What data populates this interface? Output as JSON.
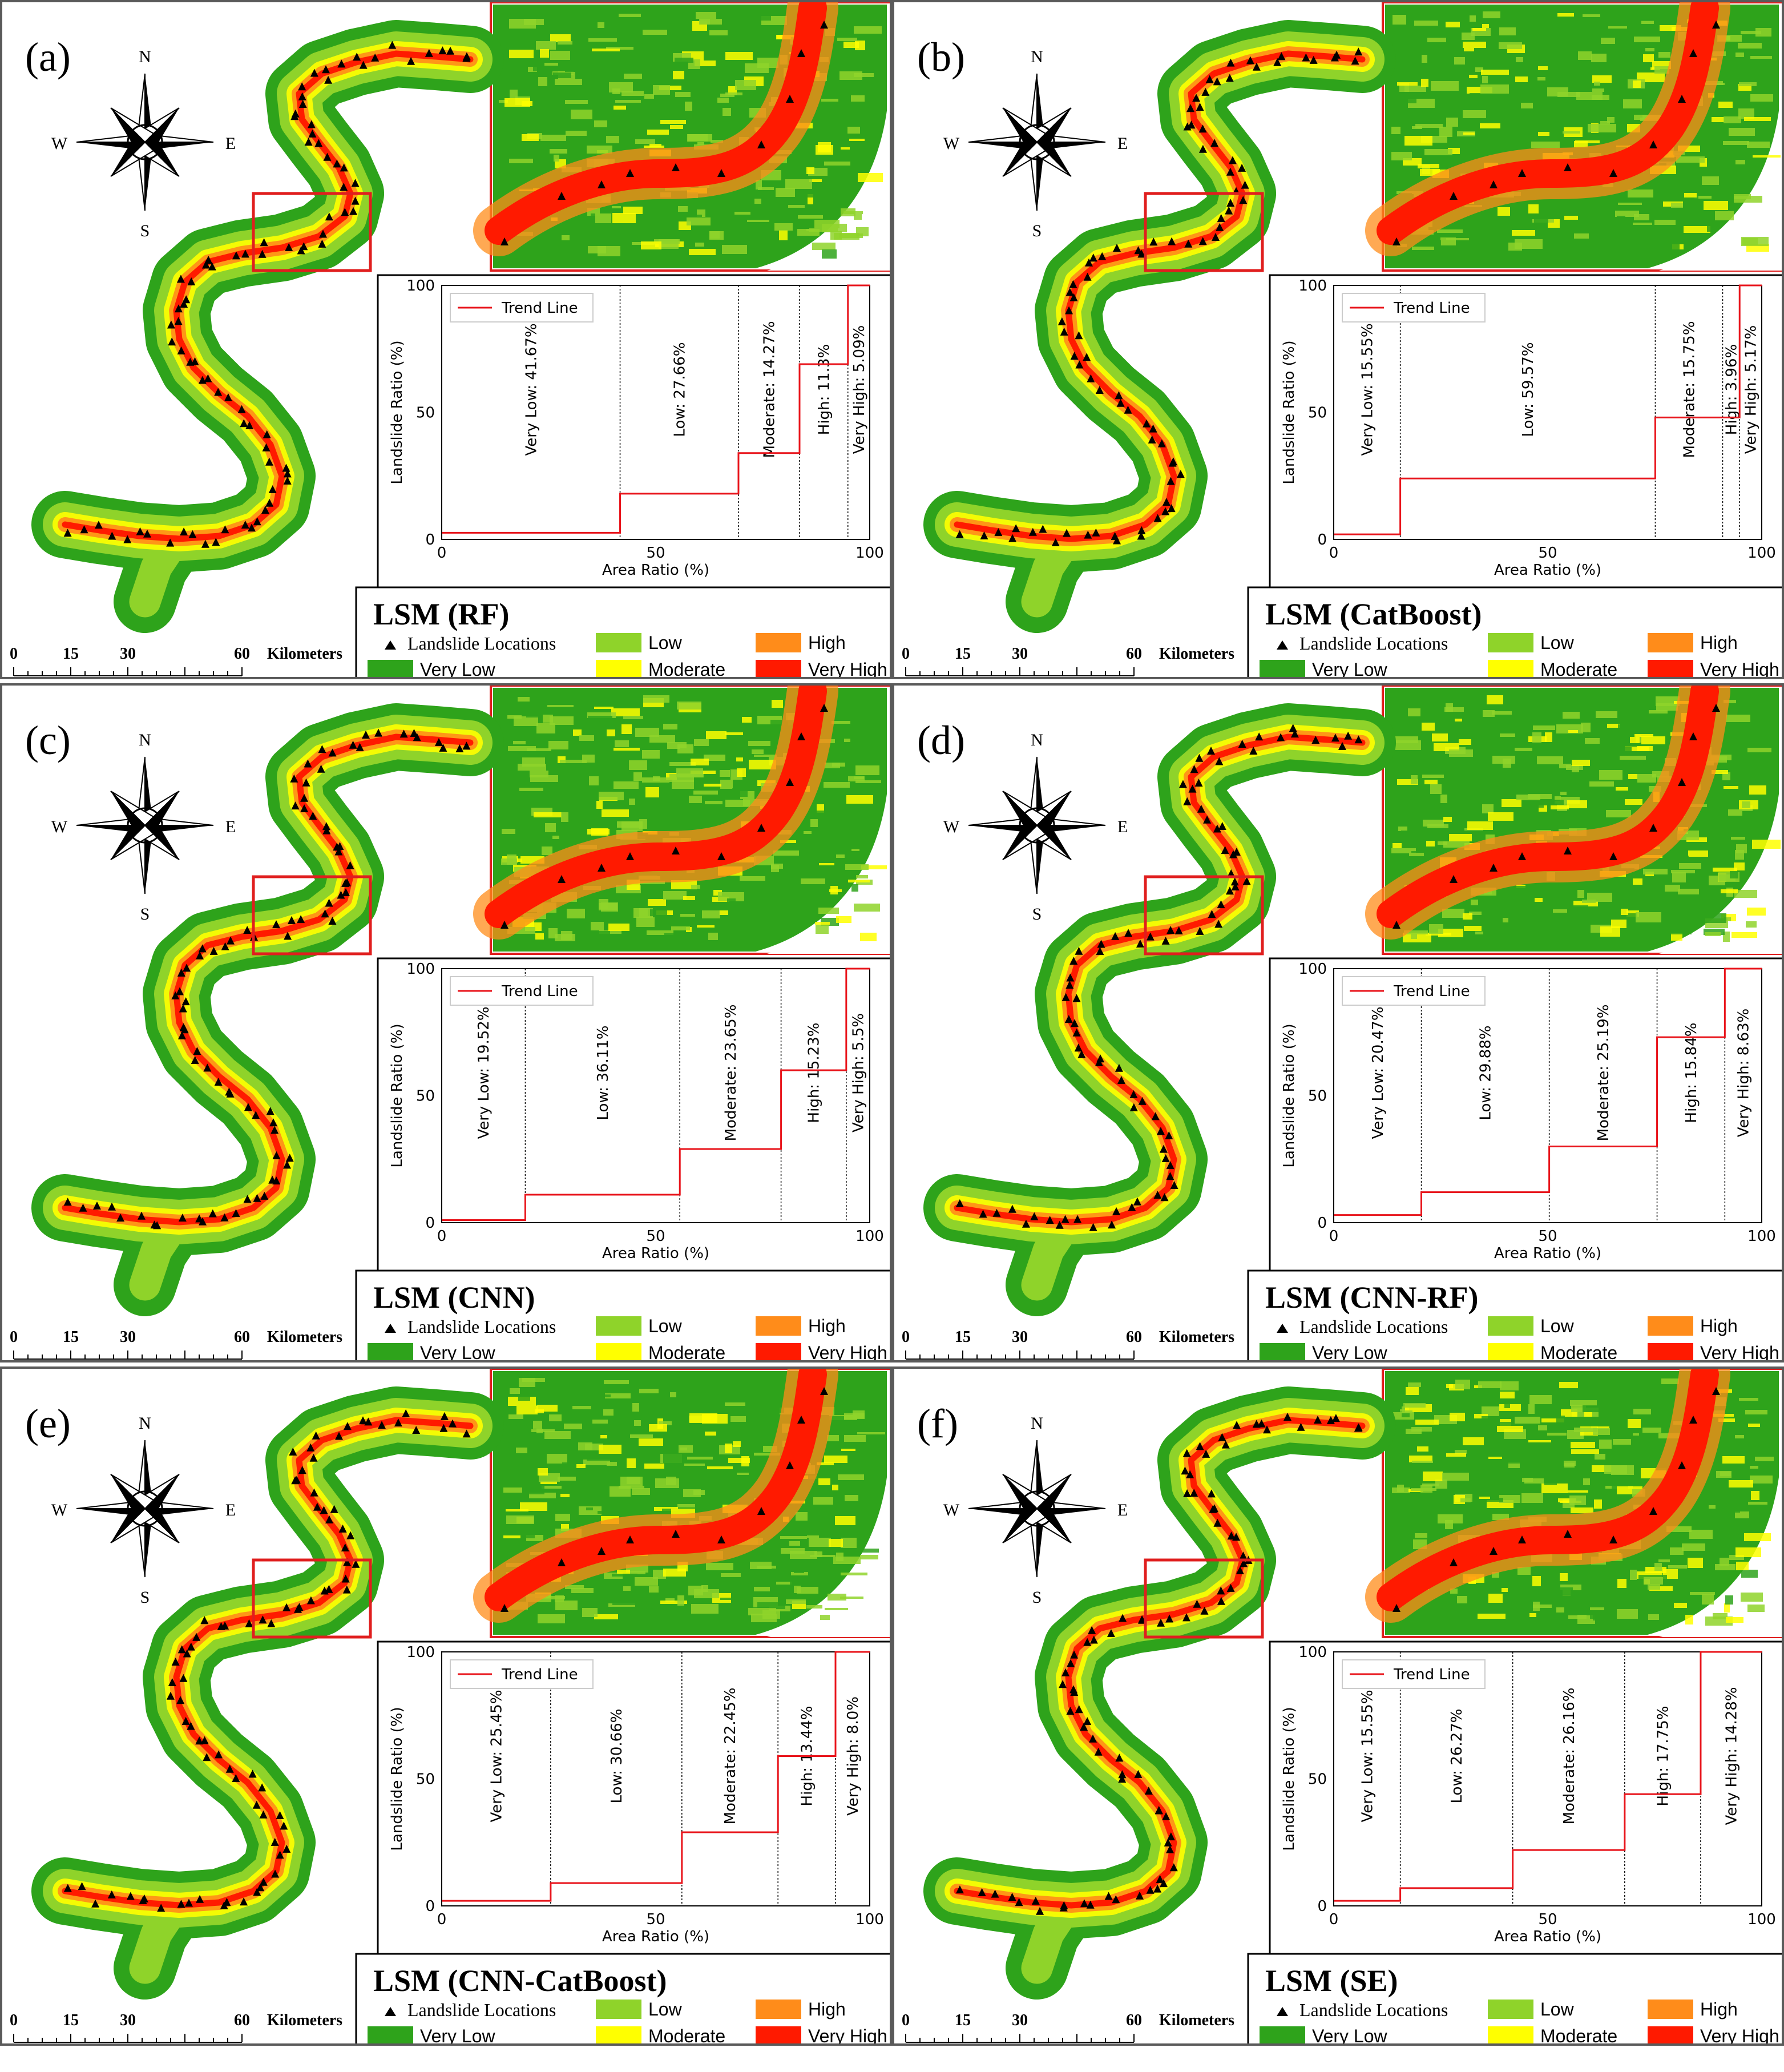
{
  "colors": {
    "very_low": "#2ea31b",
    "low": "#8fd32a",
    "moderate": "#ffff00",
    "high": "#ff8c1a",
    "very_high": "#ff1a00",
    "trend_line": "#e8141b",
    "inset_frame": "#e01e1e",
    "landslide_marker": "#000000"
  },
  "compass": {
    "n": "N",
    "s": "S",
    "e": "E",
    "w": "W"
  },
  "scale_bar": {
    "ticks": [
      "0",
      "15",
      "30",
      "60"
    ],
    "unit": "Kilometers"
  },
  "legend": {
    "landslide": "Landslide Locations",
    "very_low": "Very Low",
    "low": "Low",
    "moderate": "Moderate",
    "high": "High",
    "very_high": "Very High"
  },
  "chart_axes": {
    "xlabel": "Area Ratio (%)",
    "ylabel": "Landslide Ratio (%)",
    "legend_label": "Trend Line",
    "x_ticks": [
      "0",
      "50",
      "100"
    ],
    "y_ticks": [
      "0",
      "50",
      "100"
    ]
  },
  "panels": [
    {
      "id": "a",
      "label": "(a)",
      "title": "LSM (RF)"
    },
    {
      "id": "b",
      "label": "(b)",
      "title": "LSM (CatBoost)"
    },
    {
      "id": "c",
      "label": "(c)",
      "title": "LSM (CNN)"
    },
    {
      "id": "d",
      "label": "(d)",
      "title": "LSM (CNN-RF)"
    },
    {
      "id": "e",
      "label": "(e)",
      "title": "LSM (CNN-CatBoost)"
    },
    {
      "id": "f",
      "label": "(f)",
      "title": "LSM (SE)"
    }
  ],
  "chart_data": [
    {
      "type": "line",
      "panel": "a",
      "xlabel": "Area Ratio (%)",
      "ylabel": "Landslide Ratio (%)",
      "xlim": [
        0,
        100
      ],
      "ylim": [
        0,
        100
      ],
      "series_label": "Trend Line",
      "classes": [
        {
          "label": "Very Low: 41.67%",
          "area": 41.67,
          "landslide": 2.6
        },
        {
          "label": "Low: 27.66%",
          "area": 27.66,
          "landslide": 18
        },
        {
          "label": "Moderate: 14.27%",
          "area": 14.27,
          "landslide": 34
        },
        {
          "label": "High: 11.3%",
          "area": 11.3,
          "landslide": 69
        },
        {
          "label": "Very High: 5.09%",
          "area": 5.09,
          "landslide": 100
        }
      ]
    },
    {
      "type": "line",
      "panel": "b",
      "xlabel": "Area Ratio (%)",
      "ylabel": "Landslide Ratio (%)",
      "xlim": [
        0,
        100
      ],
      "ylim": [
        0,
        100
      ],
      "series_label": "Trend Line",
      "classes": [
        {
          "label": "Very Low: 15.55%",
          "area": 15.55,
          "landslide": 2
        },
        {
          "label": "Low: 59.57%",
          "area": 59.57,
          "landslide": 24
        },
        {
          "label": "Moderate: 15.75%",
          "area": 15.75,
          "landslide": 48
        },
        {
          "label": "High: 3.96%",
          "area": 3.96,
          "landslide": 48
        },
        {
          "label": "Very High: 5.17%",
          "area": 5.17,
          "landslide": 100
        }
      ]
    },
    {
      "type": "line",
      "panel": "c",
      "xlabel": "Area Ratio (%)",
      "ylabel": "Landslide Ratio (%)",
      "xlim": [
        0,
        100
      ],
      "ylim": [
        0,
        100
      ],
      "series_label": "Trend Line",
      "classes": [
        {
          "label": "Very Low: 19.52%",
          "area": 19.52,
          "landslide": 1
        },
        {
          "label": "Low: 36.11%",
          "area": 36.11,
          "landslide": 11
        },
        {
          "label": "Moderate: 23.65%",
          "area": 23.65,
          "landslide": 29
        },
        {
          "label": "High: 15.23%",
          "area": 15.23,
          "landslide": 60
        },
        {
          "label": "Very High: 5.5%",
          "area": 5.5,
          "landslide": 100
        }
      ]
    },
    {
      "type": "line",
      "panel": "d",
      "xlabel": "Area Ratio (%)",
      "ylabel": "Landslide Ratio (%)",
      "xlim": [
        0,
        100
      ],
      "ylim": [
        0,
        100
      ],
      "series_label": "Trend Line",
      "classes": [
        {
          "label": "Very Low: 20.47%",
          "area": 20.47,
          "landslide": 3
        },
        {
          "label": "Low: 29.88%",
          "area": 29.88,
          "landslide": 12
        },
        {
          "label": "Moderate: 25.19%",
          "area": 25.19,
          "landslide": 30
        },
        {
          "label": "High: 15.84%",
          "area": 15.84,
          "landslide": 73
        },
        {
          "label": "Very High: 8.63%",
          "area": 8.63,
          "landslide": 100
        }
      ]
    },
    {
      "type": "line",
      "panel": "e",
      "xlabel": "Area Ratio (%)",
      "ylabel": "Landslide Ratio (%)",
      "xlim": [
        0,
        100
      ],
      "ylim": [
        0,
        100
      ],
      "series_label": "Trend Line",
      "classes": [
        {
          "label": "Very Low: 25.45%",
          "area": 25.45,
          "landslide": 2
        },
        {
          "label": "Low: 30.66%",
          "area": 30.66,
          "landslide": 9
        },
        {
          "label": "Moderate: 22.45%",
          "area": 22.45,
          "landslide": 29
        },
        {
          "label": "High: 13.44%",
          "area": 13.44,
          "landslide": 59
        },
        {
          "label": "Very High: 8.0%",
          "area": 8.0,
          "landslide": 100
        }
      ]
    },
    {
      "type": "line",
      "panel": "f",
      "xlabel": "Area Ratio (%)",
      "ylabel": "Landslide Ratio (%)",
      "xlim": [
        0,
        100
      ],
      "ylim": [
        0,
        100
      ],
      "series_label": "Trend Line",
      "classes": [
        {
          "label": "Very Low: 15.55%",
          "area": 15.55,
          "landslide": 2
        },
        {
          "label": "Low: 26.27%",
          "area": 26.27,
          "landslide": 7
        },
        {
          "label": "Moderate: 26.16%",
          "area": 26.16,
          "landslide": 22
        },
        {
          "label": "High: 17.75%",
          "area": 17.75,
          "landslide": 44
        },
        {
          "label": "Very High: 14.28%",
          "area": 14.28,
          "landslide": 100
        }
      ]
    }
  ]
}
